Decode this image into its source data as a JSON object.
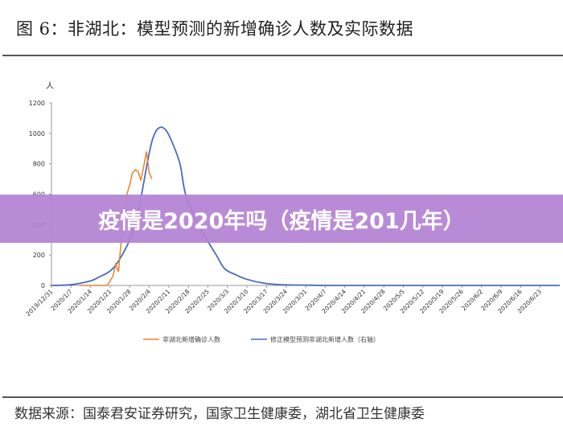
{
  "title": "图 6：非湖北：模型预测的新增确诊人数及实际数据",
  "source": "数据来源：国泰君安证券研究，国家卫生健康委，湖北省卫生健康委",
  "banner": "疫情是2020年吗（疫情是201几年）",
  "colors": {
    "actual": "#e8822e",
    "model": "#4a6bbf",
    "banner": "#b482d4"
  },
  "chart_data": {
    "type": "line",
    "title": "非湖北：模型预测的新增确诊人数及实际数据",
    "ylabel": "人",
    "ylim": [
      0,
      1200
    ],
    "yticks": [
      0,
      200,
      400,
      600,
      800,
      1000,
      1200
    ],
    "x_unit": "days since 2019/12/31",
    "xlim": [
      0,
      182
    ],
    "xtick_labels": [
      "2019/12/31",
      "2020/1/7",
      "2020/1/14",
      "2020/1/21",
      "2020/1/28",
      "2020/2/4",
      "2020/2/11",
      "2020/2/18",
      "2020/2/25",
      "2020/3/3",
      "2020/3/10",
      "2020/3/17",
      "2020/3/24",
      "2020/3/31",
      "2020/4/7",
      "2020/4/14",
      "2020/4/21",
      "2020/4/28",
      "2020/5/5",
      "2020/5/12",
      "2020/5/19",
      "2020/5/26",
      "2020/6/2",
      "2020/6/9",
      "2020/6/16",
      "2020/6/23"
    ],
    "legend_position": "bottom",
    "series": [
      {
        "name": "非湖北新增确诊人数",
        "color": "#e8822e",
        "x": [
          10,
          14,
          19,
          20,
          21,
          22,
          23,
          24,
          25,
          26,
          27,
          28,
          29,
          30,
          31,
          32,
          33,
          34,
          35,
          36
        ],
        "y": [
          0,
          0,
          0,
          2,
          30,
          60,
          140,
          90,
          300,
          450,
          600,
          660,
          740,
          760,
          750,
          690,
          780,
          880,
          740,
          700
        ]
      },
      {
        "name": "修正模型预测非湖北新增人数（右轴）",
        "color": "#4a6bbf",
        "x": [
          0,
          7,
          14,
          17,
          21,
          24,
          28,
          31,
          35,
          37,
          39,
          41,
          43,
          46,
          48,
          52,
          56,
          59,
          62,
          66,
          70,
          76,
          82,
          90,
          100,
          120,
          182
        ],
        "y": [
          0,
          5,
          30,
          55,
          95,
          160,
          300,
          480,
          870,
          1000,
          1040,
          1020,
          950,
          800,
          600,
          420,
          290,
          200,
          110,
          70,
          40,
          15,
          5,
          2,
          0,
          0,
          0
        ]
      }
    ]
  }
}
